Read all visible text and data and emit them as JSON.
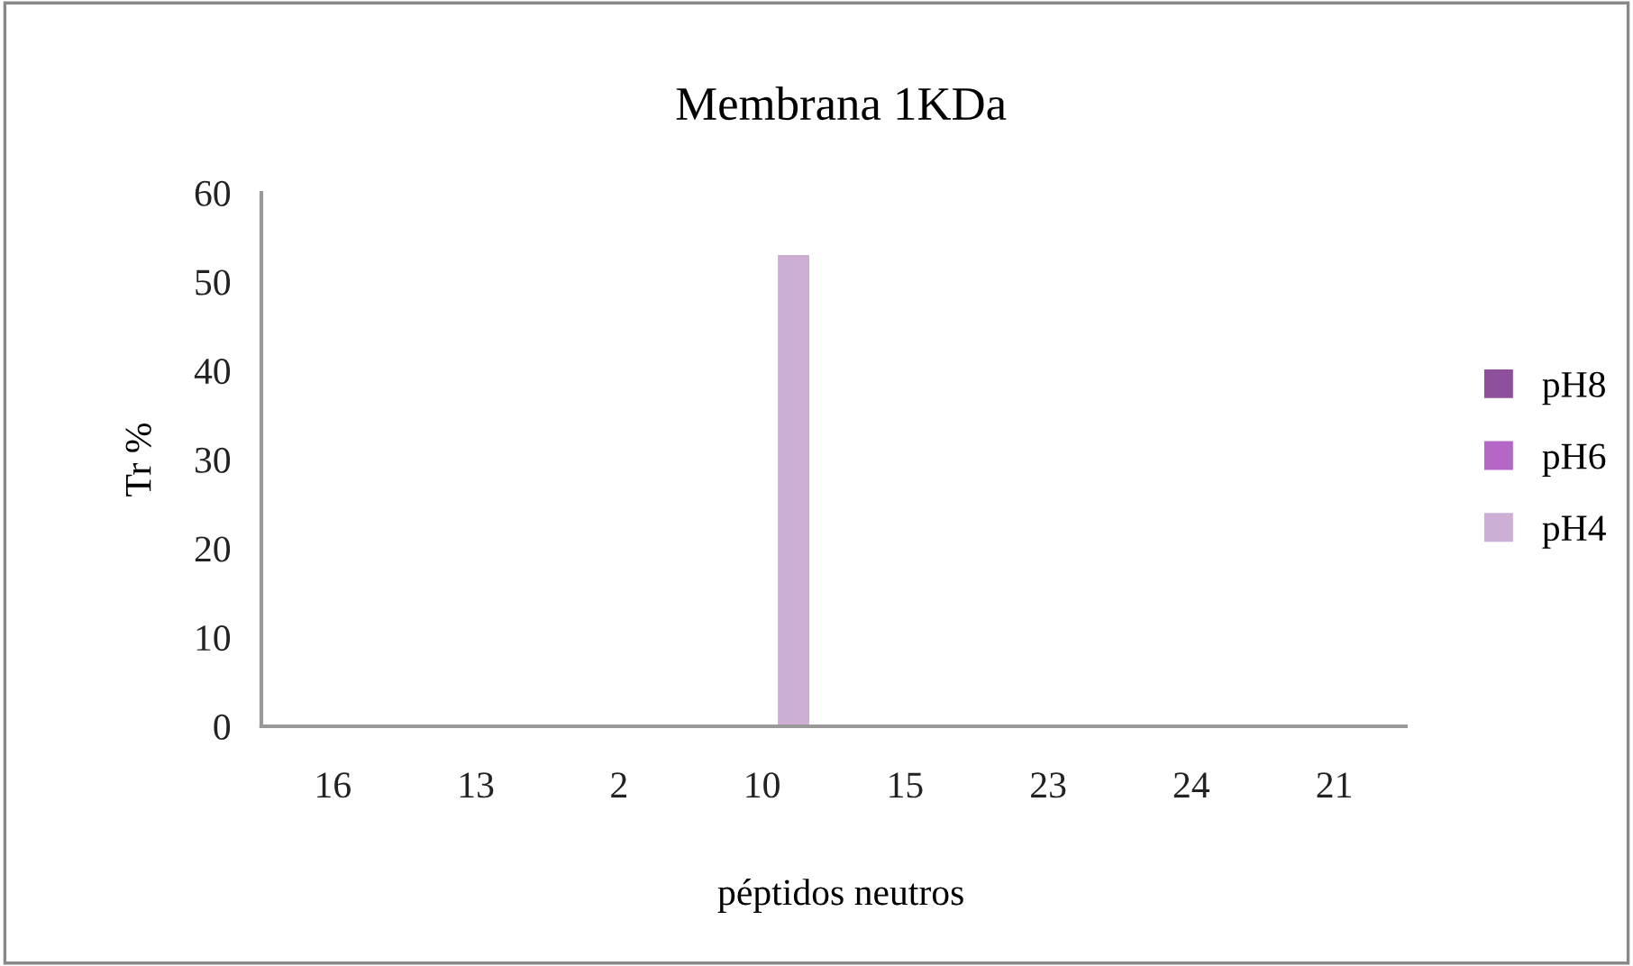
{
  "chart_data": {
    "type": "bar",
    "title": "Membrana 1KDa",
    "xlabel": "péptidos neutros",
    "ylabel": "Tr %",
    "categories": [
      "16",
      "13",
      "2",
      "10",
      "15",
      "23",
      "24",
      "21"
    ],
    "series": [
      {
        "name": "pH8",
        "color": "#8e4f9c",
        "values": [
          0,
          0,
          0,
          0,
          0,
          0,
          0,
          0
        ]
      },
      {
        "name": "pH6",
        "color": "#b467c6",
        "values": [
          0,
          0,
          0,
          0,
          0,
          0,
          0,
          0
        ]
      },
      {
        "name": "pH4",
        "color": "#cfaed6",
        "values": [
          0,
          0,
          0,
          53,
          0,
          0,
          0,
          0
        ]
      }
    ],
    "ylim": [
      0,
      60
    ],
    "yticks": [
      0,
      10,
      20,
      30,
      40,
      50,
      60
    ],
    "grid": false,
    "legend": "right"
  }
}
